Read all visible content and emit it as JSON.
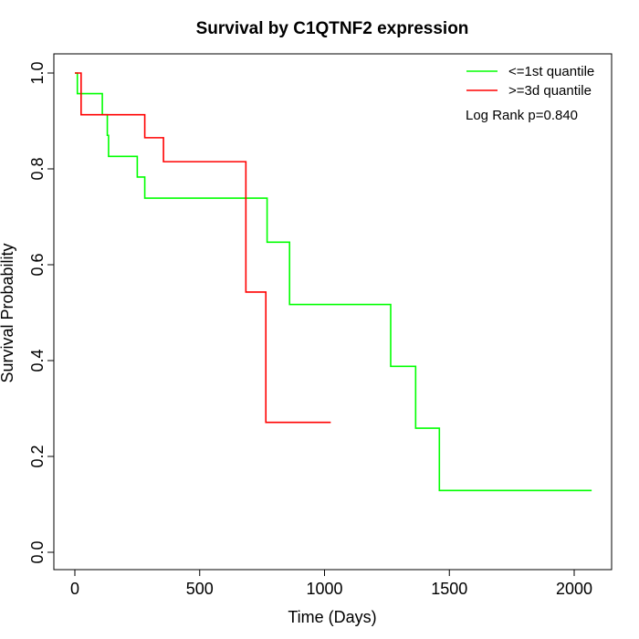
{
  "chart_data": {
    "type": "line",
    "title": "Survival by C1QTNF2 expression",
    "xlabel": "Time (Days)",
    "ylabel": "Survival Probability",
    "xlim": [
      0,
      2070
    ],
    "ylim": [
      0,
      1
    ],
    "xticks": [
      0,
      500,
      1000,
      1500,
      2000
    ],
    "xtick_labels": [
      "0",
      "500",
      "1000",
      "1500",
      "2000"
    ],
    "yticks": [
      0,
      0.2,
      0.4,
      0.6,
      0.8,
      1.0
    ],
    "ytick_labels": [
      "0.0",
      "0.2",
      "0.4",
      "0.6",
      "0.8",
      "1.0"
    ],
    "grid": false,
    "legend_position": "top-right",
    "annotation": "Log Rank p=0.840",
    "series": [
      {
        "name": "<=1st quantile",
        "color": "#00ff00",
        "step": true,
        "x": [
          0,
          10,
          110,
          130,
          135,
          250,
          280,
          770,
          860,
          1265,
          1365,
          1460,
          2070
        ],
        "y": [
          1.0,
          0.957,
          0.913,
          0.87,
          0.826,
          0.783,
          0.739,
          0.647,
          0.517,
          0.388,
          0.259,
          0.129,
          0.129
        ]
      },
      {
        "name": ">=3d quantile",
        "color": "#ff0000",
        "step": true,
        "x": [
          0,
          25,
          280,
          355,
          685,
          765,
          1025
        ],
        "y": [
          1.0,
          0.913,
          0.865,
          0.815,
          0.543,
          0.271,
          0.271
        ]
      }
    ]
  }
}
